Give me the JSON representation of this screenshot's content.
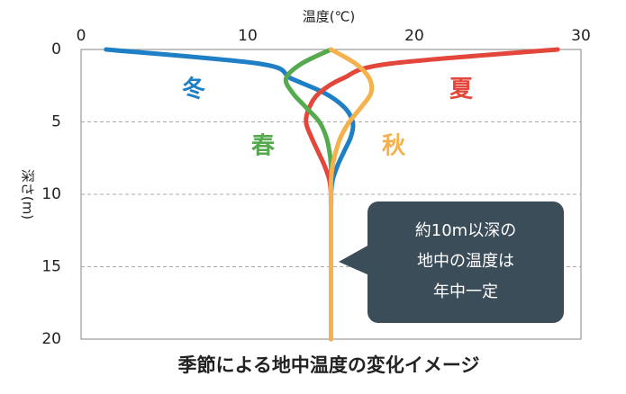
{
  "chart_data": {
    "type": "line",
    "title": "季節による地中温度の変化イメージ",
    "xlabel": "温度(℃)",
    "ylabel": "深さ(m)",
    "x": [
      0,
      1,
      2,
      3,
      4,
      5,
      6,
      7,
      8,
      9,
      10,
      11,
      12,
      13,
      14,
      15,
      16,
      17,
      18,
      19,
      20
    ],
    "series": [
      {
        "name": "冬",
        "color": "#1f7fc4",
        "values": [
          1.5,
          10.8,
          12.6,
          14.6,
          15.8,
          16.3,
          16.2,
          15.8,
          15.4,
          15.1,
          15,
          15,
          15,
          15,
          15,
          15,
          15,
          15,
          15,
          15,
          15
        ]
      },
      {
        "name": "夏",
        "color": "#e3473b",
        "values": [
          28.6,
          18.4,
          15.7,
          14.3,
          13.7,
          13.5,
          13.8,
          14.2,
          14.6,
          14.9,
          15,
          15,
          15,
          15,
          15,
          15,
          15,
          15,
          15,
          15,
          15
        ]
      },
      {
        "name": "春",
        "color": "#56aa4e",
        "values": [
          15,
          13.2,
          12.3,
          12.7,
          13.5,
          14.3,
          14.7,
          14.9,
          15,
          15,
          15,
          15,
          15,
          15,
          15,
          15,
          15,
          15,
          15,
          15,
          15
        ]
      },
      {
        "name": "秋",
        "color": "#f5b24c",
        "values": [
          15,
          16.5,
          17.3,
          17.4,
          16.8,
          16.1,
          15.6,
          15.3,
          15.1,
          15,
          15,
          15,
          15,
          15,
          15,
          15,
          15,
          15,
          15,
          15,
          15
        ]
      }
    ],
    "xlim": [
      0,
      30
    ],
    "xticks": [
      0,
      10,
      20,
      30
    ],
    "ylim": [
      0,
      20
    ],
    "yticks": [
      0,
      5,
      10,
      15,
      20
    ],
    "y_inverted": true,
    "grid": true,
    "callout": [
      "約10m以深の",
      "地中の温度は",
      "年中一定"
    ]
  }
}
